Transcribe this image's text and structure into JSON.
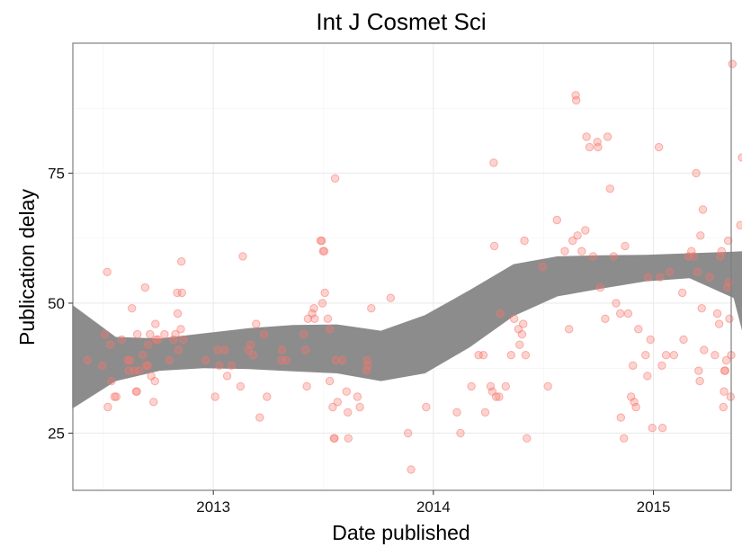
{
  "chart_data": {
    "type": "scatter",
    "title": "Int J Cosmet Sci",
    "xlabel": "Date published",
    "ylabel": "Publication delay",
    "xlim": [
      "2012-05-13",
      "2015-05-10"
    ],
    "ylim": [
      14.0,
      100.0
    ],
    "x_ticks": [
      "2013-01-01",
      "2014-01-01",
      "2015-01-01"
    ],
    "x_tick_labels": [
      "2013",
      "2014",
      "2015"
    ],
    "y_ticks": [
      25,
      50,
      75
    ],
    "y_tick_labels": [
      "25",
      "50",
      "75"
    ],
    "grid": true,
    "legend": "none",
    "point_color": "#f8766d",
    "ribbon_color": "#8c8c8c",
    "points": [
      {
        "date": "2012-06-06",
        "y": 39
      },
      {
        "date": "2012-07-01",
        "y": 38
      },
      {
        "date": "2012-07-05",
        "y": 44
      },
      {
        "date": "2012-07-09",
        "y": 56
      },
      {
        "date": "2012-07-10",
        "y": 30
      },
      {
        "date": "2012-07-14",
        "y": 42
      },
      {
        "date": "2012-07-16",
        "y": 35
      },
      {
        "date": "2012-07-21",
        "y": 32
      },
      {
        "date": "2012-07-24",
        "y": 32
      },
      {
        "date": "2012-08-02",
        "y": 43
      },
      {
        "date": "2012-08-12",
        "y": 39
      },
      {
        "date": "2012-08-14",
        "y": 37
      },
      {
        "date": "2012-08-16",
        "y": 39
      },
      {
        "date": "2012-08-19",
        "y": 49
      },
      {
        "date": "2012-08-23",
        "y": 37
      },
      {
        "date": "2012-08-26",
        "y": 33
      },
      {
        "date": "2012-08-27",
        "y": 33
      },
      {
        "date": "2012-08-28",
        "y": 44
      },
      {
        "date": "2012-08-31",
        "y": 37
      },
      {
        "date": "2012-09-06",
        "y": 40
      },
      {
        "date": "2012-09-10",
        "y": 53
      },
      {
        "date": "2012-09-12",
        "y": 38
      },
      {
        "date": "2012-09-14",
        "y": 38
      },
      {
        "date": "2012-09-15",
        "y": 42
      },
      {
        "date": "2012-09-18",
        "y": 44
      },
      {
        "date": "2012-09-20",
        "y": 36
      },
      {
        "date": "2012-09-24",
        "y": 31
      },
      {
        "date": "2012-09-26",
        "y": 35
      },
      {
        "date": "2012-09-27",
        "y": 46
      },
      {
        "date": "2012-09-28",
        "y": 43
      },
      {
        "date": "2012-10-01",
        "y": 43
      },
      {
        "date": "2012-10-12",
        "y": 44
      },
      {
        "date": "2012-10-20",
        "y": 39
      },
      {
        "date": "2012-10-27",
        "y": 43
      },
      {
        "date": "2012-10-30",
        "y": 44
      },
      {
        "date": "2012-11-02",
        "y": 52
      },
      {
        "date": "2012-11-03",
        "y": 48
      },
      {
        "date": "2012-11-04",
        "y": 41
      },
      {
        "date": "2012-11-08",
        "y": 45
      },
      {
        "date": "2012-11-09",
        "y": 58
      },
      {
        "date": "2012-11-10",
        "y": 52
      },
      {
        "date": "2012-11-12",
        "y": 43
      },
      {
        "date": "2012-12-19",
        "y": 39
      },
      {
        "date": "2013-01-04",
        "y": 32
      },
      {
        "date": "2013-01-08",
        "y": 41
      },
      {
        "date": "2013-01-11",
        "y": 38
      },
      {
        "date": "2013-01-20",
        "y": 41
      },
      {
        "date": "2013-01-24",
        "y": 36
      },
      {
        "date": "2013-01-31",
        "y": 38
      },
      {
        "date": "2013-02-15",
        "y": 34
      },
      {
        "date": "2013-02-19",
        "y": 59
      },
      {
        "date": "2013-02-28",
        "y": 41
      },
      {
        "date": "2013-03-04",
        "y": 42
      },
      {
        "date": "2013-03-08",
        "y": 40
      },
      {
        "date": "2013-03-13",
        "y": 46
      },
      {
        "date": "2013-03-19",
        "y": 28
      },
      {
        "date": "2013-03-26",
        "y": 44
      },
      {
        "date": "2013-03-31",
        "y": 32
      },
      {
        "date": "2013-04-24",
        "y": 39
      },
      {
        "date": "2013-04-25",
        "y": 41
      },
      {
        "date": "2013-05-02",
        "y": 39
      },
      {
        "date": "2013-05-31",
        "y": 44
      },
      {
        "date": "2013-06-03",
        "y": 41
      },
      {
        "date": "2013-06-05",
        "y": 34
      },
      {
        "date": "2013-06-07",
        "y": 47
      },
      {
        "date": "2013-06-14",
        "y": 48
      },
      {
        "date": "2013-06-17",
        "y": 49
      },
      {
        "date": "2013-06-18",
        "y": 47
      },
      {
        "date": "2013-06-28",
        "y": 62
      },
      {
        "date": "2013-06-30",
        "y": 62
      },
      {
        "date": "2013-07-01",
        "y": 50
      },
      {
        "date": "2013-07-02",
        "y": 60
      },
      {
        "date": "2013-07-04",
        "y": 60
      },
      {
        "date": "2013-07-05",
        "y": 52
      },
      {
        "date": "2013-07-10",
        "y": 47
      },
      {
        "date": "2013-07-13",
        "y": 45
      },
      {
        "date": "2013-07-13",
        "y": 35
      },
      {
        "date": "2013-07-18",
        "y": 30
      },
      {
        "date": "2013-07-20",
        "y": 24
      },
      {
        "date": "2013-07-21",
        "y": 24
      },
      {
        "date": "2013-07-22",
        "y": 74
      },
      {
        "date": "2013-07-23",
        "y": 39
      },
      {
        "date": "2013-07-26",
        "y": 31
      },
      {
        "date": "2013-08-03",
        "y": 39
      },
      {
        "date": "2013-08-10",
        "y": 33
      },
      {
        "date": "2013-08-12",
        "y": 29
      },
      {
        "date": "2013-08-13",
        "y": 24
      },
      {
        "date": "2013-08-28",
        "y": 32
      },
      {
        "date": "2013-09-01",
        "y": 30
      },
      {
        "date": "2013-09-12",
        "y": 37
      },
      {
        "date": "2013-09-13",
        "y": 39
      },
      {
        "date": "2013-09-14",
        "y": 38
      },
      {
        "date": "2013-09-20",
        "y": 49
      },
      {
        "date": "2013-10-22",
        "y": 51
      },
      {
        "date": "2013-11-20",
        "y": 25
      },
      {
        "date": "2013-11-25",
        "y": 18
      },
      {
        "date": "2013-12-20",
        "y": 30
      },
      {
        "date": "2014-02-09",
        "y": 29
      },
      {
        "date": "2014-02-15",
        "y": 25
      },
      {
        "date": "2014-03-05",
        "y": 34
      },
      {
        "date": "2014-03-17",
        "y": 40
      },
      {
        "date": "2014-03-25",
        "y": 40
      },
      {
        "date": "2014-03-28",
        "y": 29
      },
      {
        "date": "2014-04-06",
        "y": 34
      },
      {
        "date": "2014-04-09",
        "y": 33
      },
      {
        "date": "2014-04-11",
        "y": 77
      },
      {
        "date": "2014-04-12",
        "y": 61
      },
      {
        "date": "2014-04-15",
        "y": 32
      },
      {
        "date": "2014-04-20",
        "y": 32
      },
      {
        "date": "2014-04-22",
        "y": 48
      },
      {
        "date": "2014-05-01",
        "y": 34
      },
      {
        "date": "2014-05-10",
        "y": 40
      },
      {
        "date": "2014-05-15",
        "y": 47
      },
      {
        "date": "2014-05-22",
        "y": 45
      },
      {
        "date": "2014-05-24",
        "y": 42
      },
      {
        "date": "2014-05-28",
        "y": 44
      },
      {
        "date": "2014-05-30",
        "y": 46
      },
      {
        "date": "2014-06-01",
        "y": 62
      },
      {
        "date": "2014-06-03",
        "y": 40
      },
      {
        "date": "2014-06-05",
        "y": 24
      },
      {
        "date": "2014-07-01",
        "y": 57
      },
      {
        "date": "2014-07-10",
        "y": 34
      },
      {
        "date": "2014-07-25",
        "y": 66
      },
      {
        "date": "2014-08-07",
        "y": 60
      },
      {
        "date": "2014-08-14",
        "y": 45
      },
      {
        "date": "2014-08-20",
        "y": 62
      },
      {
        "date": "2014-08-25",
        "y": 90
      },
      {
        "date": "2014-08-26",
        "y": 89
      },
      {
        "date": "2014-08-28",
        "y": 63
      },
      {
        "date": "2014-09-04",
        "y": 60
      },
      {
        "date": "2014-09-10",
        "y": 64
      },
      {
        "date": "2014-09-12",
        "y": 82
      },
      {
        "date": "2014-09-17",
        "y": 80
      },
      {
        "date": "2014-09-23",
        "y": 59
      },
      {
        "date": "2014-09-30",
        "y": 81
      },
      {
        "date": "2014-10-01",
        "y": 80
      },
      {
        "date": "2014-10-05",
        "y": 53
      },
      {
        "date": "2014-10-13",
        "y": 47
      },
      {
        "date": "2014-10-17",
        "y": 82
      },
      {
        "date": "2014-10-21",
        "y": 72
      },
      {
        "date": "2014-10-27",
        "y": 59
      },
      {
        "date": "2014-10-31",
        "y": 50
      },
      {
        "date": "2014-11-07",
        "y": 48
      },
      {
        "date": "2014-11-08",
        "y": 28
      },
      {
        "date": "2014-11-13",
        "y": 24
      },
      {
        "date": "2014-11-15",
        "y": 61
      },
      {
        "date": "2014-11-20",
        "y": 48
      },
      {
        "date": "2014-11-25",
        "y": 32
      },
      {
        "date": "2014-11-28",
        "y": 38
      },
      {
        "date": "2014-11-30",
        "y": 31
      },
      {
        "date": "2014-12-03",
        "y": 30
      },
      {
        "date": "2014-12-07",
        "y": 45
      },
      {
        "date": "2014-12-19",
        "y": 40
      },
      {
        "date": "2014-12-22",
        "y": 36
      },
      {
        "date": "2014-12-23",
        "y": 55
      },
      {
        "date": "2014-12-27",
        "y": 43
      },
      {
        "date": "2014-12-30",
        "y": 26
      },
      {
        "date": "2015-01-10",
        "y": 80
      },
      {
        "date": "2015-01-12",
        "y": 55
      },
      {
        "date": "2015-01-15",
        "y": 38
      },
      {
        "date": "2015-01-16",
        "y": 26
      },
      {
        "date": "2015-01-22",
        "y": 40
      },
      {
        "date": "2015-01-28",
        "y": 56
      },
      {
        "date": "2015-02-04",
        "y": 40
      },
      {
        "date": "2015-02-18",
        "y": 52
      },
      {
        "date": "2015-02-20",
        "y": 43
      },
      {
        "date": "2015-02-28",
        "y": 59
      },
      {
        "date": "2015-03-05",
        "y": 60
      },
      {
        "date": "2015-03-09",
        "y": 59
      },
      {
        "date": "2015-03-13",
        "y": 75
      },
      {
        "date": "2015-03-15",
        "y": 56
      },
      {
        "date": "2015-03-17",
        "y": 37
      },
      {
        "date": "2015-03-19",
        "y": 35
      },
      {
        "date": "2015-03-20",
        "y": 63
      },
      {
        "date": "2015-03-22",
        "y": 49
      },
      {
        "date": "2015-03-24",
        "y": 68
      },
      {
        "date": "2015-03-26",
        "y": 41
      },
      {
        "date": "2015-04-04",
        "y": 55
      },
      {
        "date": "2015-04-13",
        "y": 40
      },
      {
        "date": "2015-04-17",
        "y": 48
      },
      {
        "date": "2015-04-20",
        "y": 46
      },
      {
        "date": "2015-04-22",
        "y": 59
      },
      {
        "date": "2015-04-24",
        "y": 60
      },
      {
        "date": "2015-04-27",
        "y": 30
      },
      {
        "date": "2015-04-28",
        "y": 33
      },
      {
        "date": "2015-04-29",
        "y": 37
      },
      {
        "date": "2015-04-30",
        "y": 37
      },
      {
        "date": "2015-05-02",
        "y": 39
      },
      {
        "date": "2015-05-04",
        "y": 53
      },
      {
        "date": "2015-05-05",
        "y": 62
      },
      {
        "date": "2015-05-06",
        "y": 54
      },
      {
        "date": "2015-05-07",
        "y": 47
      },
      {
        "date": "2015-05-09",
        "y": 32
      },
      {
        "date": "2015-05-10",
        "y": 40
      },
      {
        "date": "2015-05-12",
        "y": 96
      },
      {
        "date": "2015-05-25",
        "y": 65
      },
      {
        "date": "2015-05-28",
        "y": 78
      }
    ],
    "ribbon": [
      {
        "date": "2012-05-12",
        "lower": 29.7,
        "upper": 49.7
      },
      {
        "date": "2012-07-23",
        "lower": 35.0,
        "upper": 43.5
      },
      {
        "date": "2012-10-04",
        "lower": 37.0,
        "upper": 43.2
      },
      {
        "date": "2012-12-16",
        "lower": 37.5,
        "upper": 44.2
      },
      {
        "date": "2013-03-01",
        "lower": 37.3,
        "upper": 45.2
      },
      {
        "date": "2013-05-13",
        "lower": 36.9,
        "upper": 45.8
      },
      {
        "date": "2013-07-25",
        "lower": 36.5,
        "upper": 45.9
      },
      {
        "date": "2013-10-06",
        "lower": 35.0,
        "upper": 44.7
      },
      {
        "date": "2013-12-18",
        "lower": 36.5,
        "upper": 47.7
      },
      {
        "date": "2014-03-02",
        "lower": 41.5,
        "upper": 52.5
      },
      {
        "date": "2014-05-14",
        "lower": 47.5,
        "upper": 57.5
      },
      {
        "date": "2014-07-26",
        "lower": 51.3,
        "upper": 59.0
      },
      {
        "date": "2014-10-07",
        "lower": 52.8,
        "upper": 59.2
      },
      {
        "date": "2014-12-19",
        "lower": 54.2,
        "upper": 59.3
      },
      {
        "date": "2015-03-02",
        "lower": 54.8,
        "upper": 59.6
      },
      {
        "date": "2015-05-14",
        "lower": 51.0,
        "upper": 59.9
      },
      {
        "date": "2015-05-28",
        "lower": 44.7,
        "upper": 60.0
      }
    ]
  }
}
